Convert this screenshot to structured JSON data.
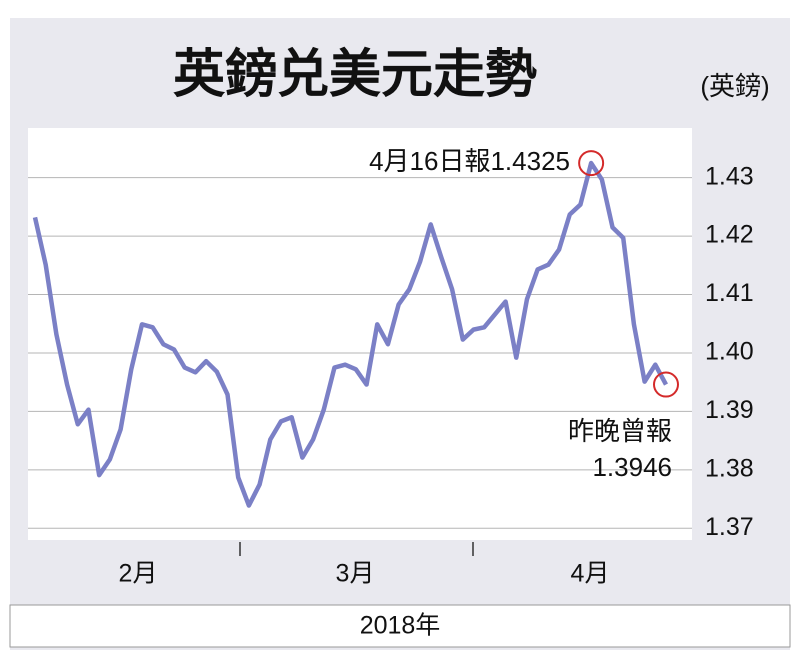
{
  "chart_data": {
    "type": "line",
    "title": "英鎊兑美元走勢",
    "unit_label": "(英鎊)",
    "x_label": "2018年",
    "month_labels": [
      "2月",
      "3月",
      "4月"
    ],
    "series": [
      {
        "color": "#7b80c6",
        "values": [
          1.4232,
          1.4151,
          1.4032,
          1.3946,
          1.3878,
          1.3903,
          1.3791,
          1.3818,
          1.3869,
          1.3972,
          1.4049,
          1.4044,
          1.4015,
          1.4006,
          1.3975,
          1.3967,
          1.3986,
          1.3968,
          1.3929,
          1.3787,
          1.3739,
          1.3775,
          1.3852,
          1.3883,
          1.389,
          1.3821,
          1.3852,
          1.3903,
          1.3975,
          1.398,
          1.3972,
          1.3946,
          1.4049,
          1.4015,
          1.4083,
          1.4109,
          1.4156,
          1.422,
          1.4163,
          1.4109,
          1.4023,
          1.404,
          1.4044,
          1.4066,
          1.4088,
          1.3992,
          1.4092,
          1.4143,
          1.4151,
          1.4177,
          1.4237,
          1.4254,
          1.4325,
          1.4297,
          1.4215,
          1.4197,
          1.4049,
          1.3951,
          1.398,
          1.3946
        ]
      }
    ],
    "annotations": [
      {
        "text": "4月16日報1.4325",
        "point": 52
      },
      {
        "text": "昨晚曾報",
        "point": 59
      },
      {
        "text": "1.3946",
        "point": 59
      }
    ],
    "ylim": [
      1.368,
      1.4385
    ],
    "yticks": [
      {
        "value": 1.37,
        "label": "1.37"
      },
      {
        "value": 1.38,
        "label": "1.38"
      },
      {
        "value": 1.39,
        "label": "1.39"
      },
      {
        "value": 1.4,
        "label": "1.40"
      },
      {
        "value": 1.41,
        "label": "1.41"
      },
      {
        "value": 1.42,
        "label": "1.42"
      },
      {
        "value": 1.43,
        "label": "1.43"
      }
    ],
    "grid": true,
    "highlight_color": "#d42a2a"
  }
}
